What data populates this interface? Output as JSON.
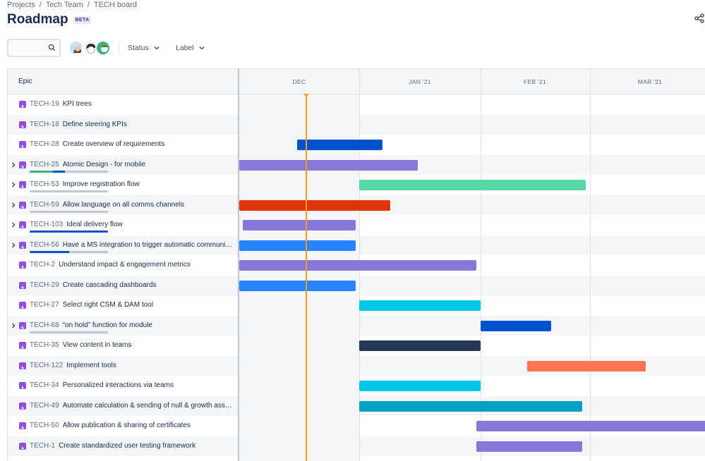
{
  "breadcrumb": {
    "items": [
      "Projects",
      "Tech Team",
      "TECH board"
    ],
    "separator": "/"
  },
  "header": {
    "title": "Roadmap",
    "badge": "BETA"
  },
  "toolbar": {
    "search_placeholder": "",
    "status_label": "Status",
    "label_label": "Label"
  },
  "avatars": [
    "user-avatar-1",
    "user-avatar-2",
    "user-avatar-3"
  ],
  "grid": {
    "epic_header": "Epic",
    "months": [
      "DEC",
      "JAN '21",
      "FEB '21",
      "MAR '21"
    ],
    "today_marker": "mid-DEC"
  },
  "colors": {
    "purple": "#8777d9",
    "green": "#57d9a3",
    "red": "#de350b",
    "blue": "#2684ff",
    "darkblue": "#0052cc",
    "teal": "#00c7e6",
    "darkteal": "#00a3bf",
    "navy": "#253858",
    "orange": "#ff7452",
    "epic_icon": "#904ee2",
    "today": "#ff991f"
  },
  "rows": [
    {
      "key": "TECH-19",
      "summary": "KPI trees",
      "expandable": false,
      "progress": null,
      "bar": null
    },
    {
      "key": "TECH-18",
      "summary": "Define steering KPIs",
      "expandable": false,
      "progress": null,
      "bar": null
    },
    {
      "key": "TECH-28",
      "summary": "Create overview of requirements",
      "expandable": false,
      "progress": null,
      "bar": {
        "start": "2020-12-16",
        "end": "2021-01-07",
        "color": "#0052cc"
      }
    },
    {
      "key": "TECH-25",
      "summary": "Atomic Design - for mobile",
      "expandable": true,
      "progress": {
        "done": 0.3,
        "inprogress": 0.15
      },
      "bar": {
        "start": "2020-12-01",
        "end": "2021-01-16",
        "color": "#8777d9"
      }
    },
    {
      "key": "TECH-53",
      "summary": "Improve registration flow",
      "expandable": true,
      "progress": {
        "done": 0,
        "inprogress": 0
      },
      "bar": {
        "start": "2021-01-01",
        "end": "2021-02-28",
        "color": "#57d9a3"
      }
    },
    {
      "key": "TECH-59",
      "summary": "Allow language on all comms channels",
      "expandable": true,
      "progress": {
        "done": 0,
        "inprogress": 0
      },
      "bar": {
        "start": "2020-12-01",
        "end": "2021-01-09",
        "color": "#de350b"
      }
    },
    {
      "key": "TECH-103",
      "summary": "Ideal delivery flow",
      "expandable": true,
      "progress": {
        "done": 0,
        "inprogress": 1.0
      },
      "bar": {
        "start": "2020-12-02",
        "end": "2020-12-31",
        "color": "#8777d9"
      }
    },
    {
      "key": "TECH-56",
      "summary": "Have a MS integration to trigger automatic communications",
      "expandable": true,
      "progress": {
        "done": 0,
        "inprogress": 0.5
      },
      "bar": {
        "start": "2020-12-01",
        "end": "2020-12-31",
        "color": "#2684ff"
      }
    },
    {
      "key": "TECH-2",
      "summary": "Understand impact & engagement metrics",
      "expandable": false,
      "progress": null,
      "bar": {
        "start": "2020-12-01",
        "end": "2021-01-31",
        "color": "#8777d9"
      }
    },
    {
      "key": "TECH-29",
      "summary": "Create cascading dashboards",
      "expandable": false,
      "progress": null,
      "bar": {
        "start": "2020-12-01",
        "end": "2020-12-31",
        "color": "#2684ff"
      }
    },
    {
      "key": "TECH-27",
      "summary": "Select right CSM & DAM tool",
      "expandable": false,
      "progress": null,
      "bar": {
        "start": "2021-01-01",
        "end": "2021-02-01",
        "color": "#00c7e6"
      }
    },
    {
      "key": "TECH-68",
      "summary": "“on hold” function for module",
      "expandable": true,
      "progress": {
        "done": 0,
        "inprogress": 0
      },
      "bar": {
        "start": "2021-02-01",
        "end": "2021-02-19",
        "color": "#0052cc"
      }
    },
    {
      "key": "TECH-35",
      "summary": "View content in teams",
      "expandable": false,
      "progress": null,
      "bar": {
        "start": "2021-01-01",
        "end": "2021-02-01",
        "color": "#253858"
      }
    },
    {
      "key": "TECH-122",
      "summary": "Implement tools",
      "expandable": false,
      "progress": null,
      "bar": {
        "start": "2021-02-13",
        "end": "2021-03-15",
        "color": "#ff7452"
      }
    },
    {
      "key": "TECH-34",
      "summary": "Personalized interactions via teams",
      "expandable": false,
      "progress": null,
      "bar": {
        "start": "2021-01-01",
        "end": "2021-02-01",
        "color": "#00c7e6"
      }
    },
    {
      "key": "TECH-49",
      "summary": "Automate calculation & sending of null & growth assessments",
      "expandable": false,
      "progress": null,
      "bar": {
        "start": "2021-01-01",
        "end": "2021-02-27",
        "color": "#00a3bf"
      }
    },
    {
      "key": "TECH-50",
      "summary": "Allow publication & sharing of certificates",
      "expandable": false,
      "progress": null,
      "bar": {
        "start": "2021-01-31",
        "end": "2021-04-01",
        "color": "#8777d9"
      }
    },
    {
      "key": "TECH-1",
      "summary": "Create standardized user testing framework",
      "expandable": false,
      "progress": null,
      "bar": {
        "start": "2021-01-31",
        "end": "2021-02-27",
        "color": "#8777d9"
      }
    }
  ]
}
